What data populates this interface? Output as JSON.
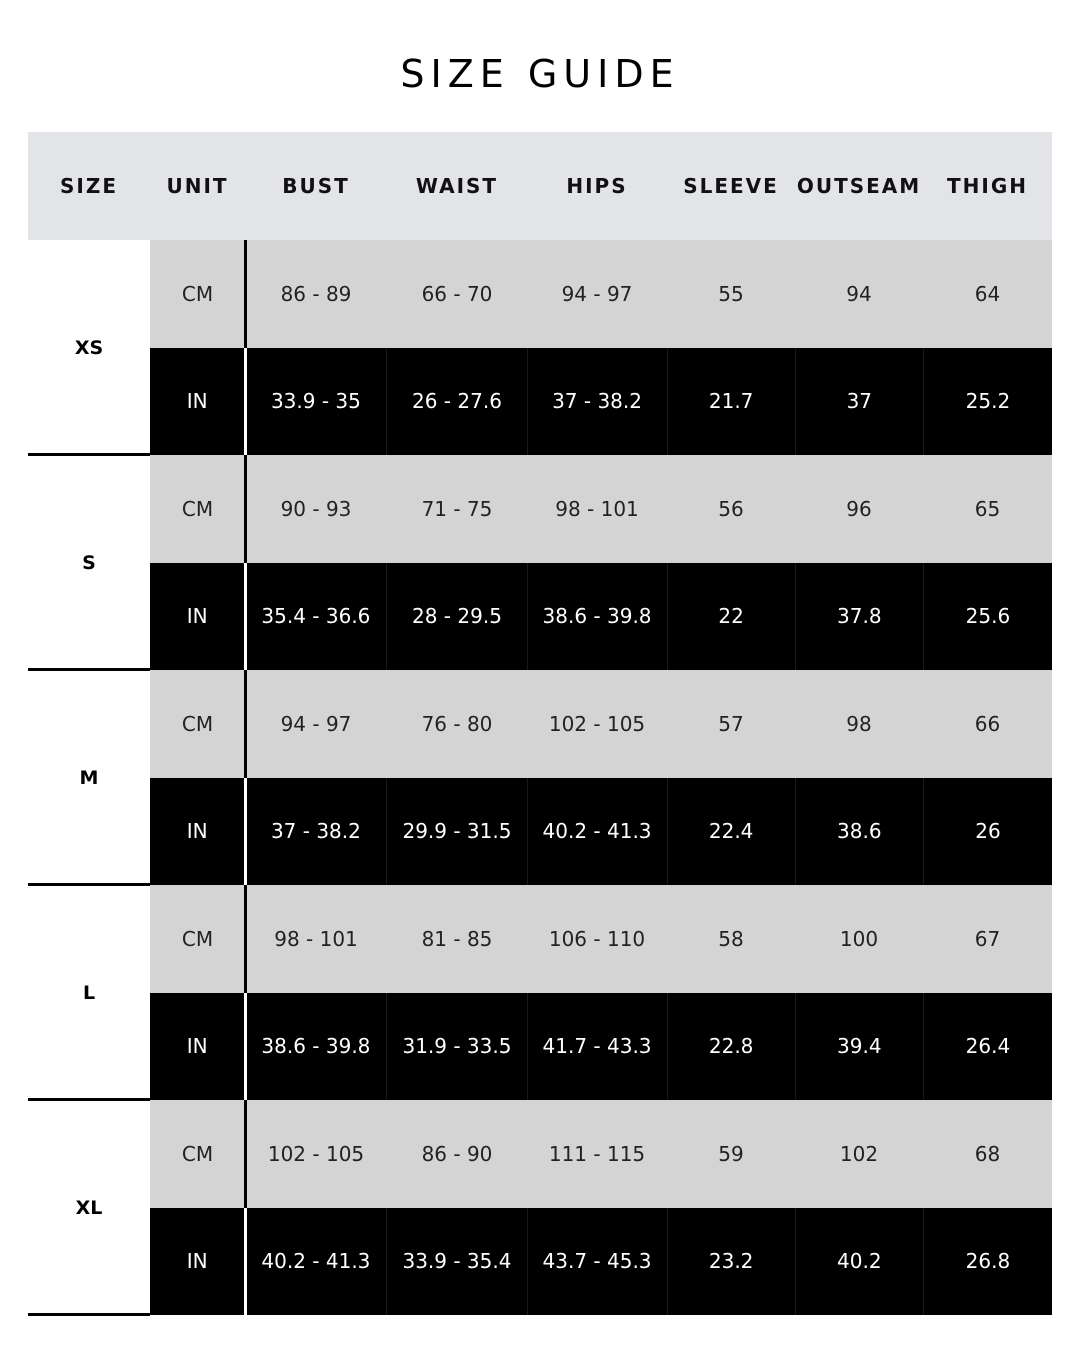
{
  "title": "SIZE GUIDE",
  "columns": [
    "SIZE",
    "UNIT",
    "BUST",
    "WAIST",
    "HIPS",
    "SLEEVE",
    "OUTSEAM",
    "THIGH"
  ],
  "colors": {
    "header_bg": "#e3e4e8",
    "cm_row_bg": "#d4d4d4",
    "in_row_bg": "#000000"
  },
  "sizes": [
    {
      "size": "XS",
      "cm": [
        "CM",
        "86 - 89",
        "66 - 70",
        "94 - 97",
        "55",
        "94",
        "64"
      ],
      "in": [
        "IN",
        "33.9 - 35",
        "26 - 27.6",
        "37 - 38.2",
        "21.7",
        "37",
        "25.2"
      ]
    },
    {
      "size": "S",
      "cm": [
        "CM",
        "90 - 93",
        "71 - 75",
        "98 - 101",
        "56",
        "96",
        "65"
      ],
      "in": [
        "IN",
        "35.4 - 36.6",
        "28 - 29.5",
        "38.6 - 39.8",
        "22",
        "37.8",
        "25.6"
      ]
    },
    {
      "size": "M",
      "cm": [
        "CM",
        "94 - 97",
        "76 - 80",
        "102 - 105",
        "57",
        "98",
        "66"
      ],
      "in": [
        "IN",
        "37 - 38.2",
        "29.9 - 31.5",
        "40.2 - 41.3",
        "22.4",
        "38.6",
        "26"
      ]
    },
    {
      "size": "L",
      "cm": [
        "CM",
        "98 - 101",
        "81 - 85",
        "106 - 110",
        "58",
        "100",
        "67"
      ],
      "in": [
        "IN",
        "38.6 - 39.8",
        "31.9 - 33.5",
        "41.7 - 43.3",
        "22.8",
        "39.4",
        "26.4"
      ]
    },
    {
      "size": "XL",
      "cm": [
        "CM",
        "102 - 105",
        "86 - 90",
        "111 - 115",
        "59",
        "102",
        "68"
      ],
      "in": [
        "IN",
        "40.2 - 41.3",
        "33.9 - 35.4",
        "43.7 - 45.3",
        "23.2",
        "40.2",
        "26.8"
      ]
    }
  ]
}
